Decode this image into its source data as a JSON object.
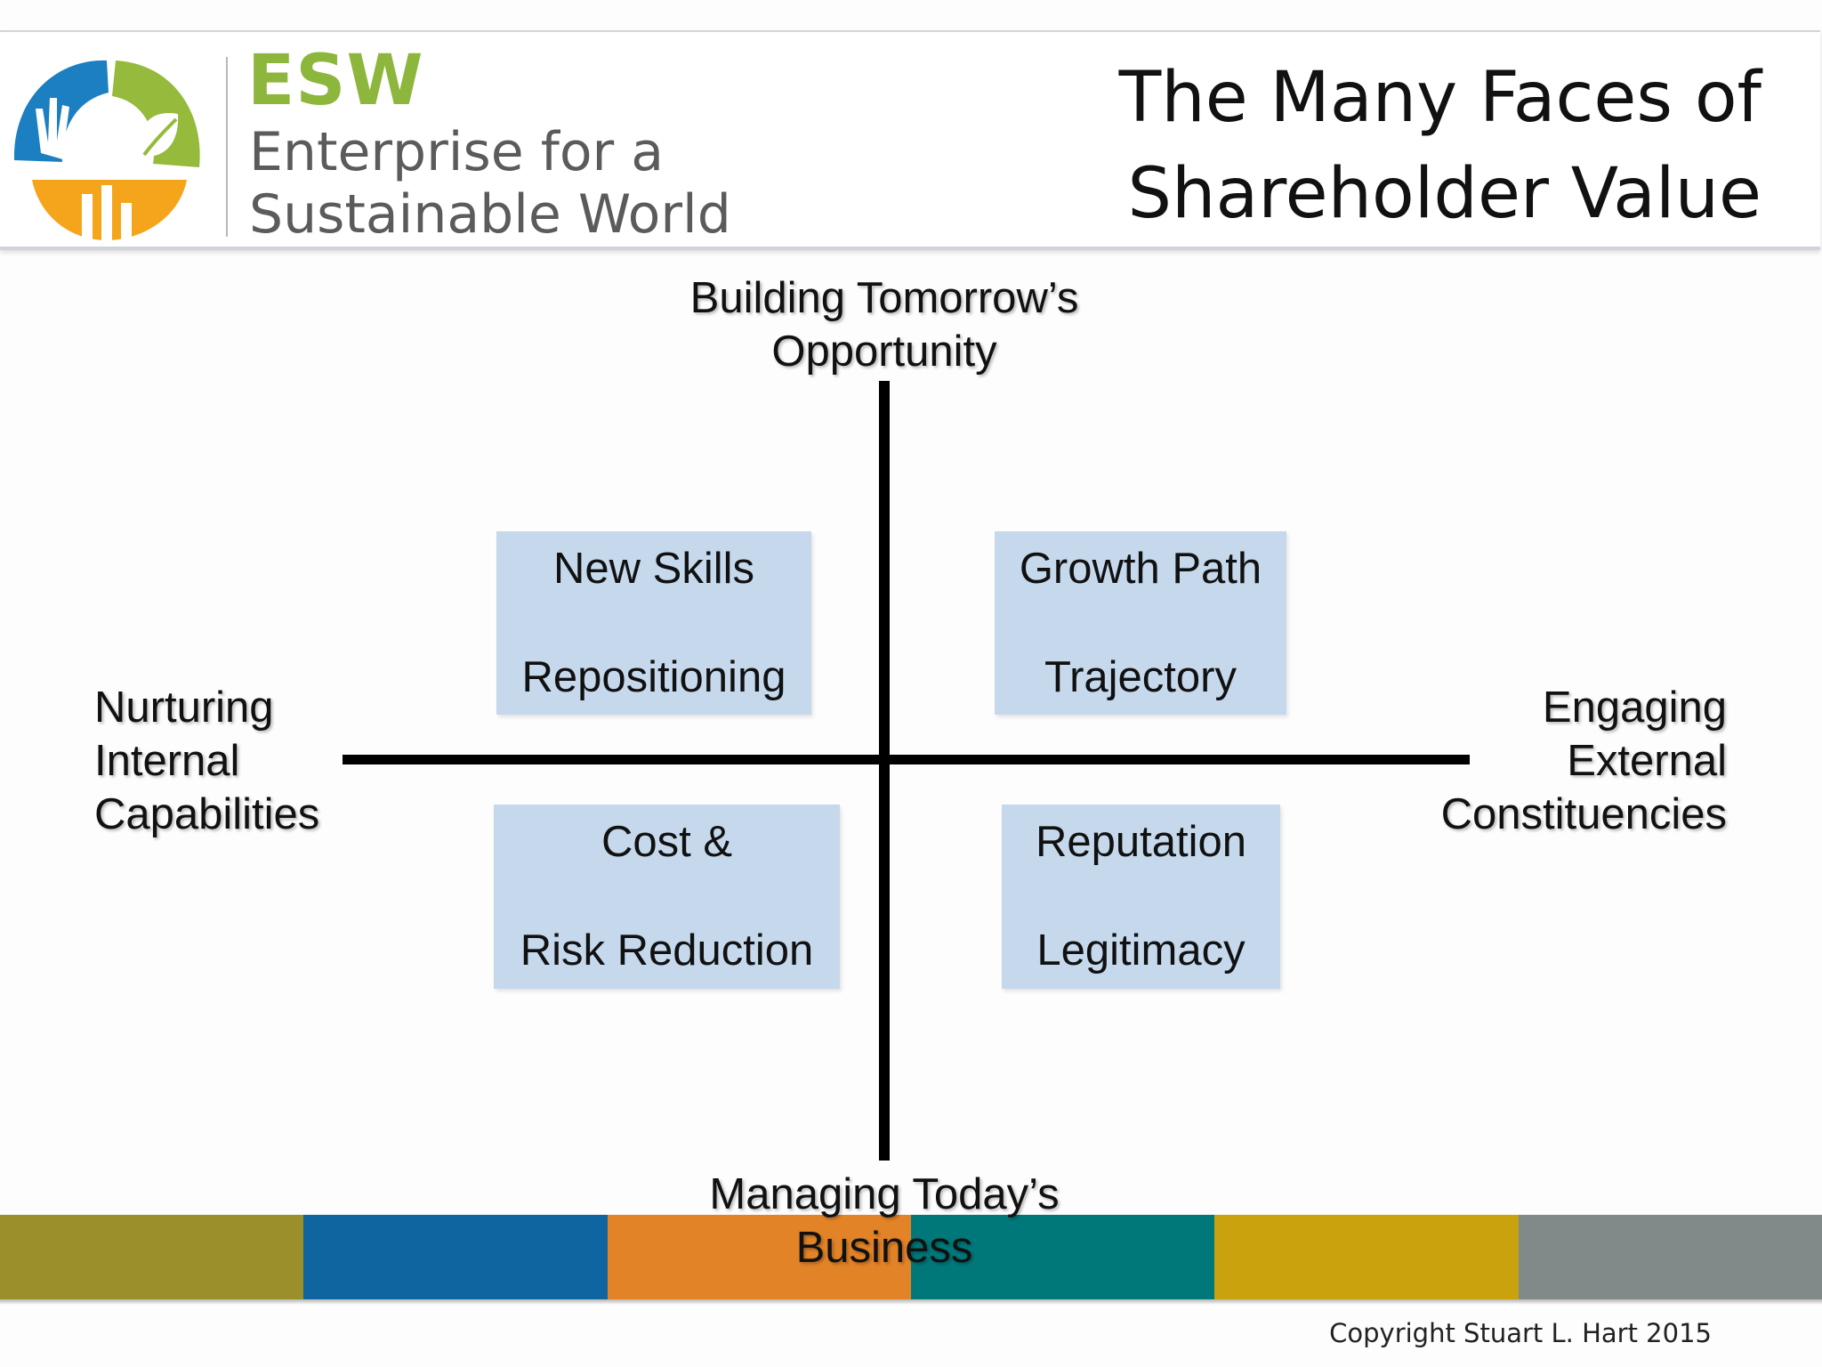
{
  "header": {
    "logo": {
      "abbreviation": "ESW",
      "name": "Enterprise for a\nSustainable World",
      "colors": {
        "blue": "#1b7fc1",
        "green": "#95ba3c",
        "orange": "#f4a51c"
      }
    },
    "title": "The Many Faces of\nShareholder Value"
  },
  "diagram": {
    "axis_labels": {
      "top": "Building Tomorrow’s\nOpportunity",
      "bottom": "Managing Today’s\nBusiness",
      "left": "Nurturing\nInternal\nCapabilities",
      "right": "Engaging\nExternal\nConstituencies"
    },
    "quadrants": {
      "top_left": {
        "line1": "New Skills",
        "line2": "Repositioning"
      },
      "top_right": {
        "line1": "Growth Path",
        "line2": "Trajectory"
      },
      "bottom_left": {
        "line1": "Cost &",
        "line2": "Risk Reduction"
      },
      "bottom_right": {
        "line1": "Reputation",
        "line2": "Legitimacy"
      }
    },
    "box_color": "#c5d8ec"
  },
  "footer": {
    "band_colors": [
      "#9a8f2b",
      "#0f65a0",
      "#e28328",
      "#00787a",
      "#c9a20d",
      "#7f8a89"
    ],
    "copyright": "Copyright Stuart L. Hart 2015"
  }
}
